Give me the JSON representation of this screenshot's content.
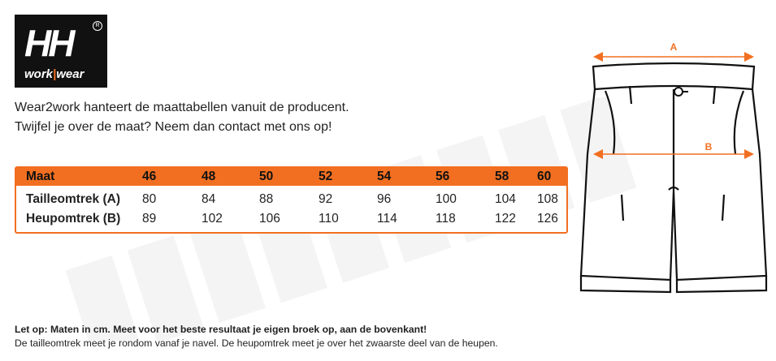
{
  "logo": {
    "brand": "HH",
    "sub_left": "work",
    "sub_sep": "|",
    "sub_right": "wear"
  },
  "intro": {
    "line1": "Wear2work hanteert de maattabellen vanuit de producent.",
    "line2": "Twijfel je over de maat? Neem dan contact met ons op!"
  },
  "size_table": {
    "header_label": "Maat",
    "sizes": [
      "46",
      "48",
      "50",
      "52",
      "54",
      "56",
      "58",
      "60"
    ],
    "rows": [
      {
        "label": "Tailleomtrek (A)",
        "values": [
          "80",
          "84",
          "88",
          "92",
          "96",
          "100",
          "104",
          "108"
        ]
      },
      {
        "label": "Heupomtrek (B)",
        "values": [
          "89",
          "102",
          "106",
          "110",
          "114",
          "118",
          "122",
          "126"
        ]
      }
    ]
  },
  "diagram": {
    "label_a": "A",
    "label_b": "B"
  },
  "notes": {
    "bold": "Let op: Maten in cm. Meet voor het beste resultaat je eigen broek op, aan de bovenkant!",
    "normal": "De tailleomtrek meet je rondom vanaf je navel. De heupomtrek meet je over het zwaarste deel van de heupen."
  },
  "colors": {
    "accent": "#f26f21",
    "logo_bg": "#111111"
  }
}
